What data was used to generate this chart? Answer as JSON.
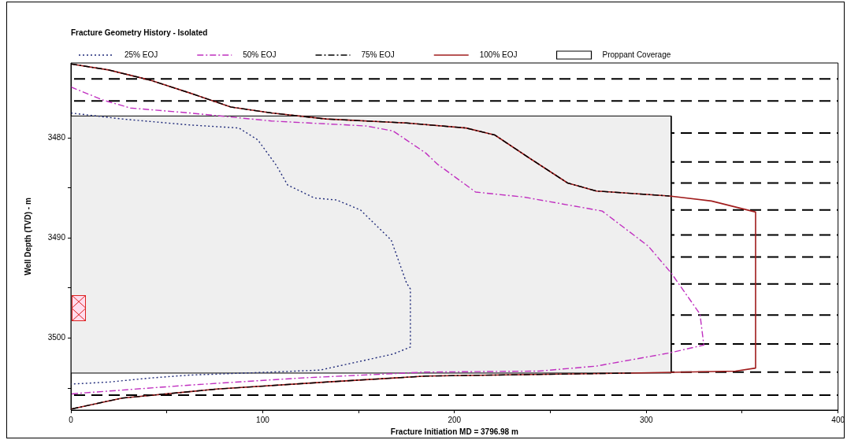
{
  "chart_data": {
    "type": "line",
    "title": "Fracture Geometry History - Isolated",
    "xlabel": "Fracture Initiation MD = 3796.98 m",
    "ylabel": "Well Depth (TVD) - m",
    "xlim": [
      0,
      400
    ],
    "xticks": [
      0,
      {
        "value": 50,
        "label": null
      },
      100,
      {
        "value": 150,
        "label": null
      },
      200,
      {
        "value": 250,
        "label": null
      },
      300,
      {
        "value": 350,
        "label": null
      },
      400
    ],
    "ylim": [
      3507.2,
      3472.5
    ],
    "yticks": [
      3480,
      {
        "value": 3485,
        "label": null
      },
      3490,
      {
        "value": 3495,
        "label": null
      },
      3500,
      {
        "value": 3505,
        "label": null
      }
    ],
    "grid": false,
    "legend": "top",
    "marker": "none",
    "series": [
      {
        "name": "25% EOJ",
        "color": "#1f2a7a",
        "line_style": "dotted",
        "x": [
          0,
          26.7,
          62,
          87.6,
          97.5,
          107,
          113,
          127,
          138.6,
          151,
          167,
          175,
          177,
          177,
          168,
          130,
          104.6,
          62,
          41,
          19.7,
          0
        ],
        "values": [
          3477.5,
          3478.1,
          3478.7,
          3479.0,
          3480.2,
          3482.7,
          3484.7,
          3486.0,
          3486.2,
          3487.2,
          3490.2,
          3494.5,
          3495.1,
          3500.9,
          3501.6,
          3503.2,
          3503.4,
          3503.7,
          3504.0,
          3504.4,
          3504.6
        ]
      },
      {
        "name": "50% EOJ",
        "color": "#c030c0",
        "line_style": "dashdot",
        "x": [
          0,
          16.6,
          31,
          62,
          104.6,
          154,
          168,
          185,
          191,
          211,
          236,
          277,
          301,
          313,
          328,
          330,
          311.7,
          274,
          244,
          185,
          119,
          62,
          5.5,
          0
        ],
        "values": [
          3474.9,
          3476.2,
          3477.0,
          3477.5,
          3478.3,
          3478.8,
          3479.3,
          3481.5,
          3482.6,
          3485.4,
          3485.9,
          3487.3,
          3490.8,
          3493.5,
          3497.6,
          3500.7,
          3501.5,
          3502.8,
          3503.3,
          3503.4,
          3504.0,
          3504.7,
          3505.5,
          3505.6
        ]
      },
      {
        "name": "75% EOJ",
        "color": "#000000",
        "line_style": "dashdot",
        "x": [
          0,
          19.7,
          41,
          62,
          83.4,
          104.6,
          133,
          175,
          206,
          221,
          239,
          259,
          274,
          312,
          null,
          292,
          185,
          133,
          76,
          26.7,
          0
        ],
        "values": [
          3472.6,
          3473.2,
          3474.2,
          3475.5,
          3476.9,
          3477.5,
          3478.1,
          3478.5,
          3479.0,
          3479.7,
          3482.0,
          3484.5,
          3485.3,
          3485.8,
          null,
          3503.5,
          3503.8,
          3504.4,
          3505.1,
          3506.0,
          3507.1
        ]
      },
      {
        "name": "100% EOJ",
        "color": "#a01c1c",
        "line_style": "solid",
        "x": [
          0,
          19.7,
          41,
          62,
          83.4,
          104.6,
          133,
          175,
          206,
          221,
          239,
          259,
          274,
          312,
          334,
          357,
          357,
          346.5,
          292,
          185,
          133,
          76,
          26.7,
          0
        ],
        "values": [
          3472.6,
          3473.2,
          3474.2,
          3475.5,
          3476.9,
          3477.5,
          3478.1,
          3478.5,
          3479.0,
          3479.7,
          3482.0,
          3484.5,
          3485.3,
          3485.8,
          3486.3,
          3487.4,
          3503.0,
          3503.3,
          3503.5,
          3503.8,
          3504.4,
          3505.1,
          3506.0,
          3507.1
        ]
      },
      {
        "name": "Proppant Coverage",
        "type": "area",
        "color": "#efefef",
        "x": [
          0,
          313,
          313,
          0,
          0
        ],
        "values": [
          3477.8,
          3477.8,
          3503.5,
          3503.5,
          3477.8
        ]
      }
    ],
    "ref_lines": [
      {
        "axis": "y",
        "value": 3474.1,
        "line_style": "dashed",
        "color": "#000000"
      },
      {
        "axis": "y",
        "value": 3476.3,
        "line_style": "dashed",
        "color": "#000000"
      },
      {
        "axis": "y",
        "value": 3479.5,
        "line_style": "dashed",
        "color": "#000000"
      },
      {
        "axis": "y",
        "value": 3482.4,
        "line_style": "dashed",
        "color": "#000000"
      },
      {
        "axis": "y",
        "value": 3484.5,
        "line_style": "dashed",
        "color": "#000000"
      },
      {
        "axis": "y",
        "value": 3487.2,
        "line_style": "dashed",
        "color": "#000000"
      },
      {
        "axis": "y",
        "value": 3489.7,
        "line_style": "dashed",
        "color": "#000000"
      },
      {
        "axis": "y",
        "value": 3491.9,
        "line_style": "dashed",
        "color": "#000000"
      },
      {
        "axis": "y",
        "value": 3494.6,
        "line_style": "dashed",
        "color": "#000000"
      },
      {
        "axis": "y",
        "value": 3497.7,
        "line_style": "dashed",
        "color": "#000000"
      },
      {
        "axis": "y",
        "value": 3500.6,
        "line_style": "dashed",
        "color": "#000000"
      },
      {
        "axis": "y",
        "value": 3503.4,
        "line_style": "dashed",
        "color": "#000000"
      },
      {
        "axis": "y",
        "value": 3505.7,
        "line_style": "dashed",
        "color": "#000000"
      }
    ]
  }
}
